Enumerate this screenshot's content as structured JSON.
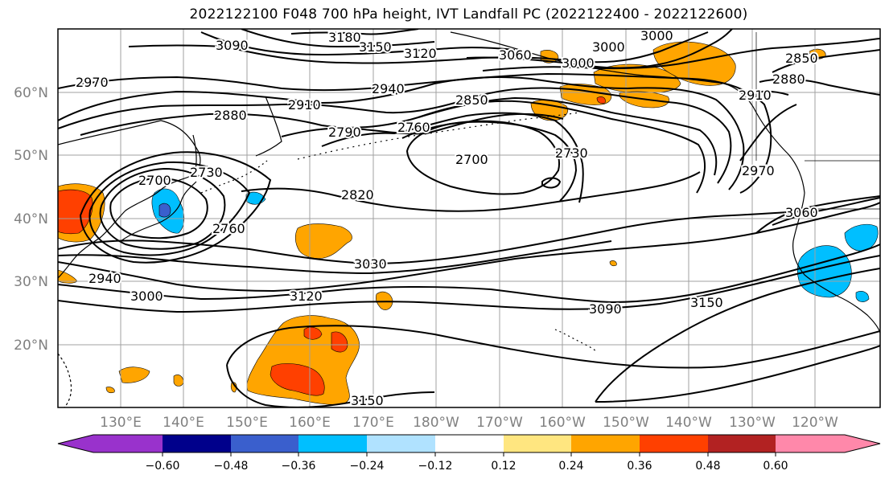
{
  "title": "2022122100 F048 700 hPa height, IVT Landfall PC (2022122400 - 2022122600)",
  "lon_labels": [
    "130°E",
    "140°E",
    "150°E",
    "160°E",
    "170°E",
    "180°W",
    "170°W",
    "160°W",
    "150°W",
    "140°W",
    "130°W",
    "120°W"
  ],
  "lat_labels": [
    "60°N",
    "50°N",
    "40°N",
    "30°N",
    "20°N"
  ],
  "contour_labels": [
    "3180",
    "3150",
    "3120",
    "3090",
    "3060",
    "3000",
    "3000",
    "2970",
    "2880",
    "2910",
    "2940",
    "2850",
    "2910",
    "2880",
    "2790",
    "2760",
    "2700",
    "2730",
    "2820",
    "2700",
    "2730",
    "2760",
    "2970",
    "3060",
    "3030",
    "2940",
    "3000",
    "3120",
    "3090",
    "3150",
    "3150",
    "2850",
    "3000"
  ],
  "colorbar": {
    "ticks": [
      "−0.60",
      "−0.48",
      "−0.36",
      "−0.24",
      "−0.12",
      "0.12",
      "0.24",
      "0.36",
      "0.48",
      "0.60"
    ],
    "colors": [
      "#9932cc",
      "#00008b",
      "#3a5fcd",
      "#00bfff",
      "#b0e2ff",
      "#ffffff",
      "#ffe680",
      "#ffa500",
      "#ff4000",
      "#b22222",
      "#ff88aa"
    ]
  },
  "shading_colors": {
    "neg_light": "#00bfff",
    "neg_mid": "#3a5fcd",
    "pos_1": "#ffa500",
    "pos_2": "#ff4000"
  }
}
